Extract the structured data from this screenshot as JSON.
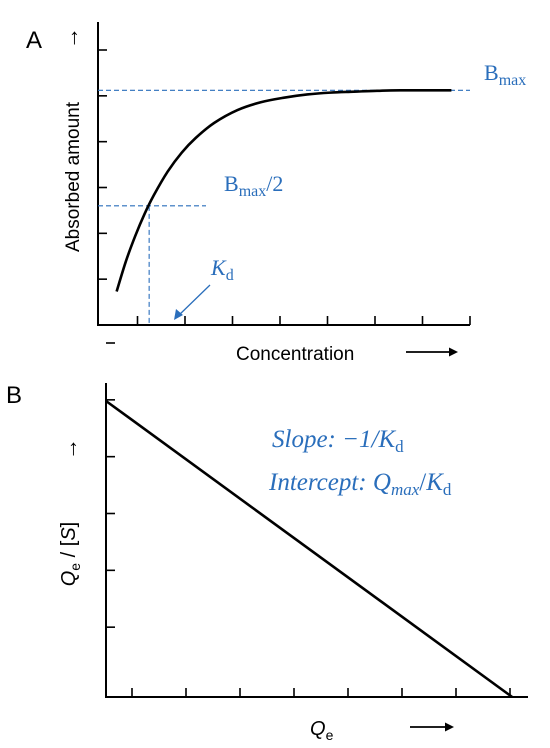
{
  "chart_data": [
    {
      "panel_label": "A",
      "type": "line",
      "xlabel": "Concentration",
      "ylabel": "Absorbed amount",
      "axis_arrow": "→",
      "ticks_x": 8,
      "ticks_y": 6,
      "xlim": [
        0,
        8
      ],
      "ylim": [
        0,
        6
      ],
      "series": [
        {
          "x": [
            0.4,
            0.6,
            0.8,
            1.0,
            1.2,
            1.5,
            1.8,
            2.1,
            2.5,
            3.0,
            3.5,
            4.0,
            4.5,
            5.0,
            5.5,
            6.0,
            6.5,
            7.0,
            7.6
          ],
          "y": [
            0.73,
            1.39,
            1.94,
            2.42,
            2.83,
            3.35,
            3.76,
            4.08,
            4.41,
            4.69,
            4.86,
            4.96,
            5.03,
            5.07,
            5.09,
            5.11,
            5.12,
            5.12,
            5.12
          ]
        }
      ],
      "guides": {
        "bmax": 5.12,
        "half_bmax": 2.6,
        "kd_x": 1.1
      },
      "annotations": {
        "bmax_main": "B",
        "bmax_sub": "max",
        "half_main": "B",
        "half_sub": "max",
        "half_tail": "/2",
        "kd_main": "K",
        "kd_sub": "d"
      },
      "annotation_color": "#2a6ebb"
    },
    {
      "panel_label": "B",
      "type": "line",
      "xlabel_main": "Q",
      "xlabel_sub": "e",
      "ylabel_main": "Q",
      "ylabel_sub": "e",
      "ylabel_tail": " / [",
      "ylabel_s": "S",
      "ylabel_end": "]",
      "axis_arrow": "→",
      "ticks_x": 8,
      "ticks_y": 6,
      "xlim": [
        0,
        8
      ],
      "ylim": [
        0,
        6
      ],
      "series": [
        {
          "x": [
            0,
            7.7
          ],
          "y": [
            5.06,
            0
          ]
        }
      ],
      "annotations": {
        "slope_prefix": "Slope: −1/",
        "slope_main": "K",
        "slope_sub": "d",
        "intercept_prefix": "Intercept: ",
        "intercept_q": "Q",
        "intercept_qsub": "max",
        "intercept_slash": "/",
        "intercept_k": "K",
        "intercept_ksub": "d"
      },
      "annotation_color": "#2a6ebb"
    }
  ]
}
